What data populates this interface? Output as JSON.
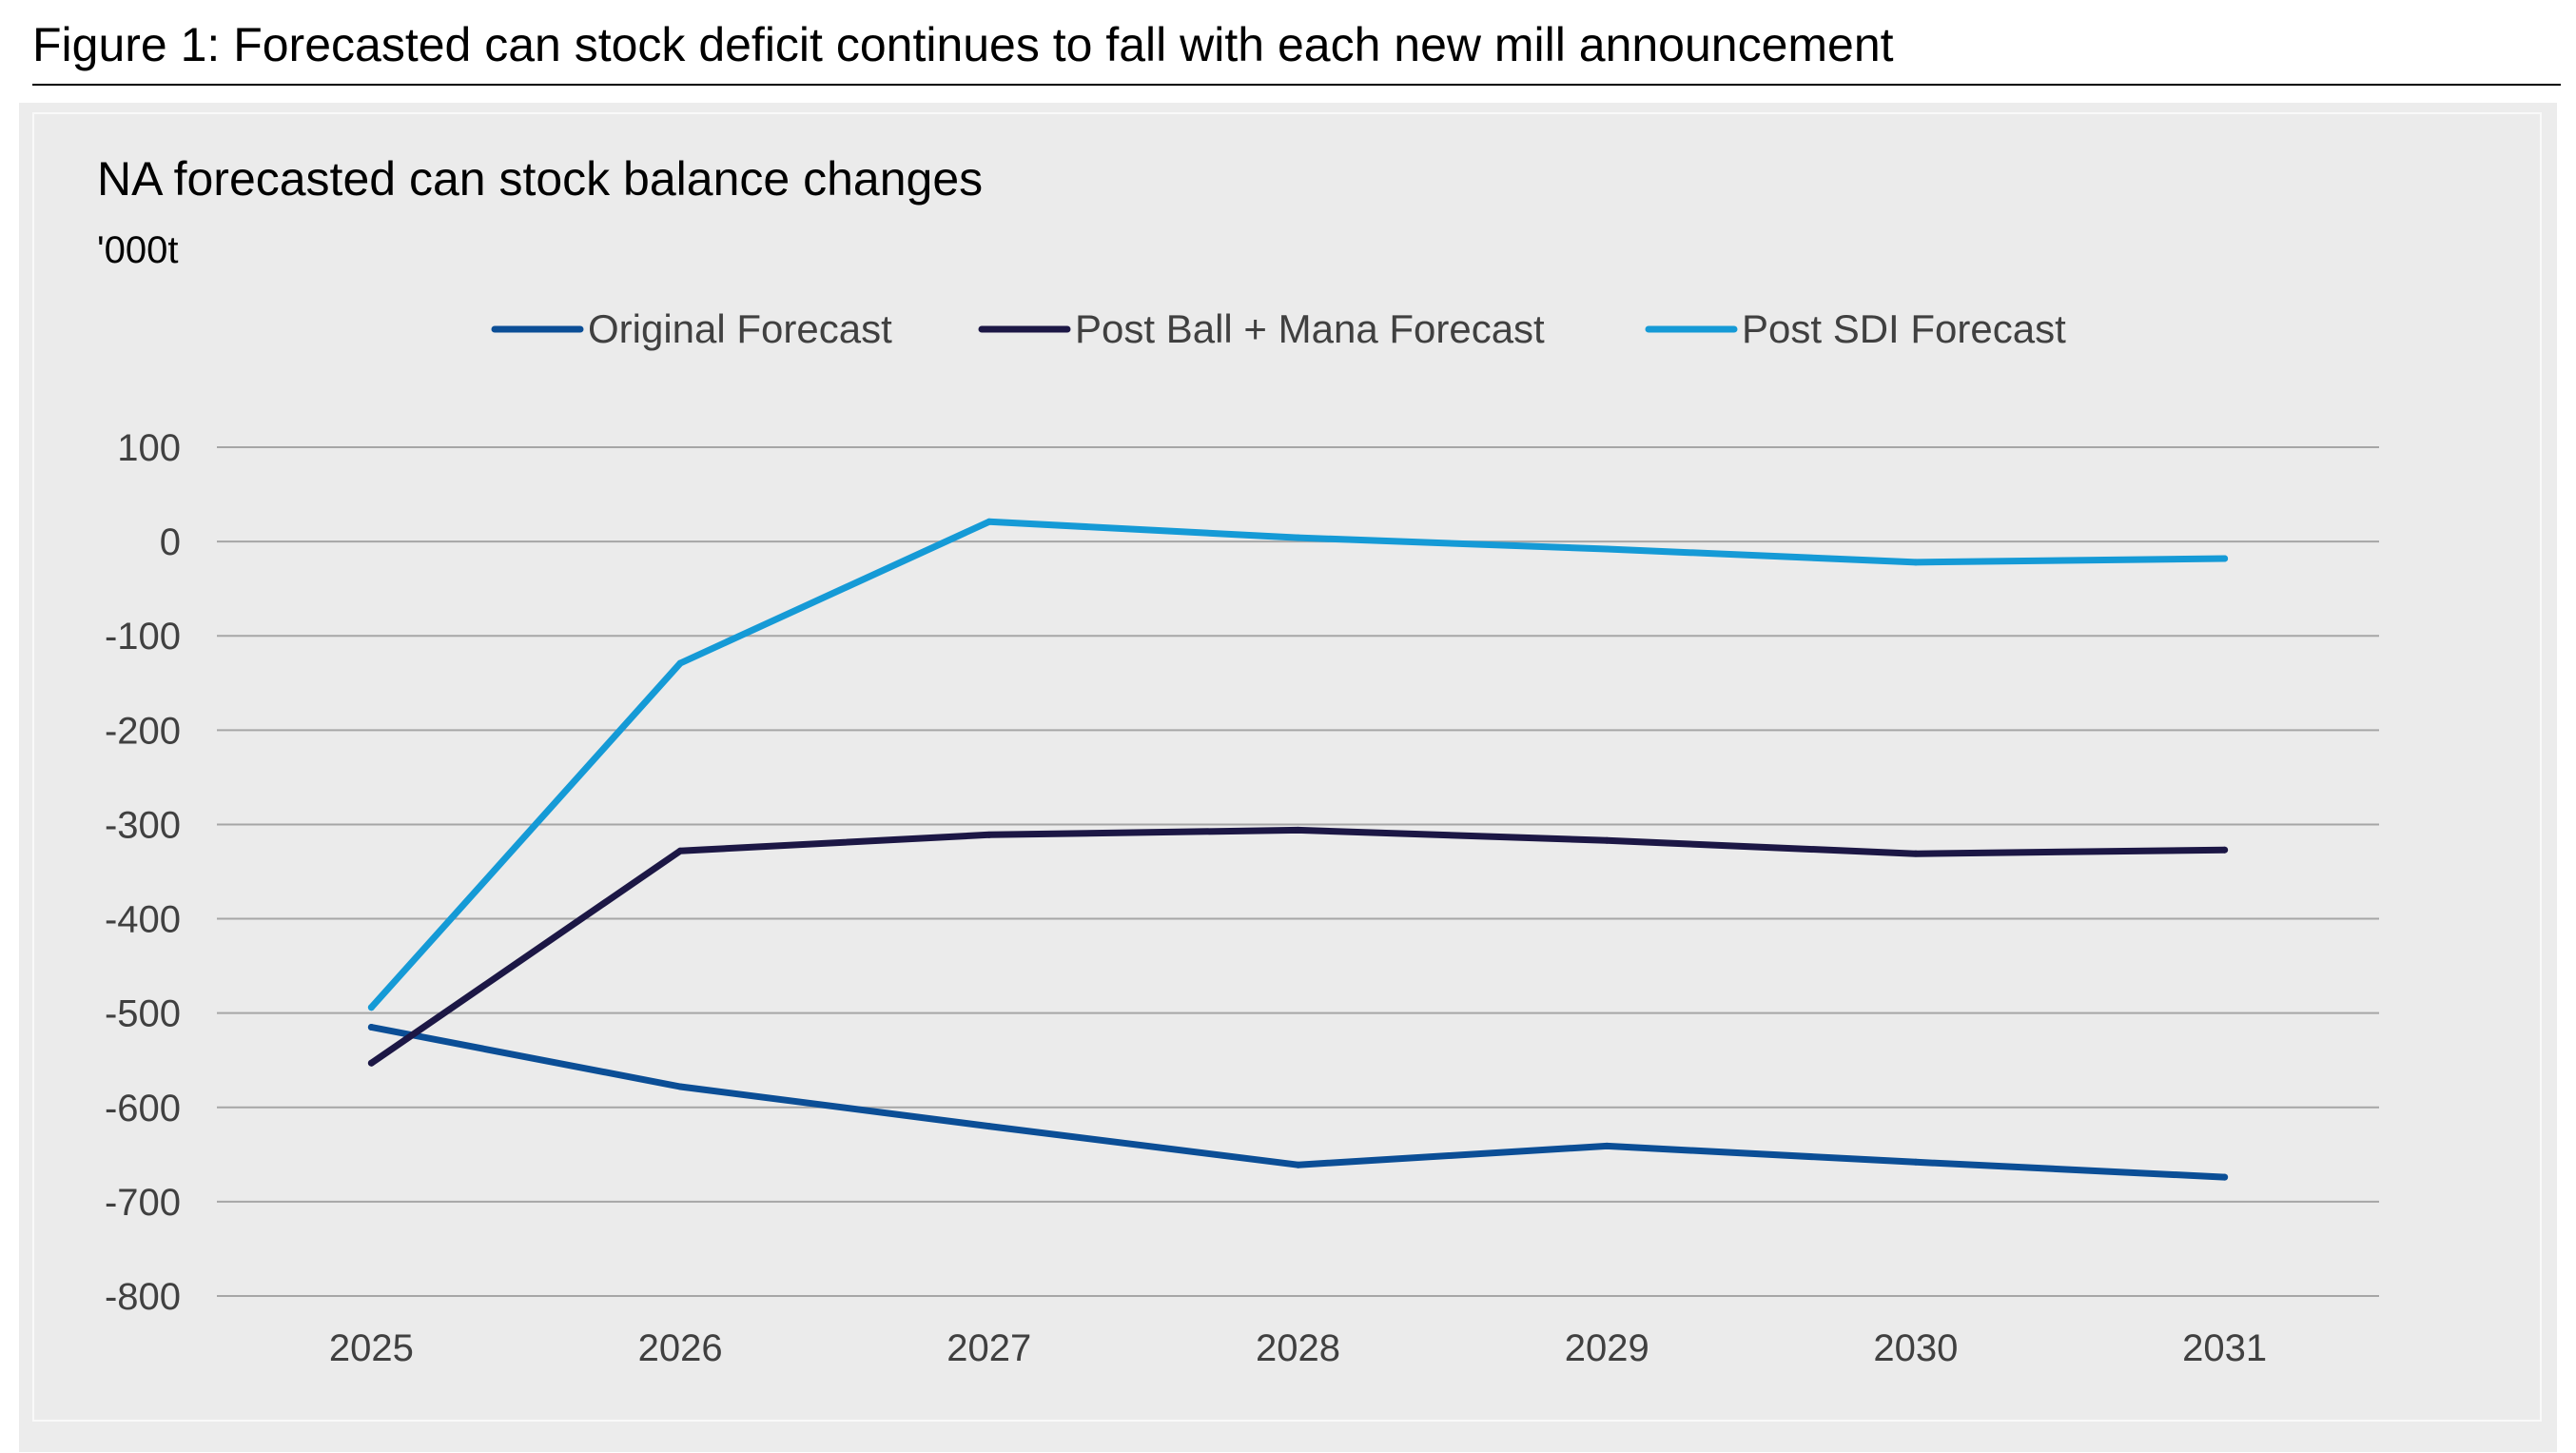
{
  "figure": {
    "caption": "Figure 1: Forecasted can stock deficit continues to fall with each new mill announcement"
  },
  "chart_data": {
    "type": "line",
    "title": "NA forecasted can stock balance changes",
    "unit_label": "'000t",
    "xlabel": "",
    "ylabel": "'000t",
    "categories": [
      "2025",
      "2026",
      "2027",
      "2028",
      "2029",
      "2030",
      "2031"
    ],
    "ylim": [
      -800,
      100
    ],
    "yticks": [
      100,
      0,
      -100,
      -200,
      -300,
      -400,
      -500,
      -600,
      -700,
      -800
    ],
    "ytick_labels": [
      "100",
      "0",
      "-100",
      "-200",
      "-300",
      "-400",
      "-500",
      "-600",
      "-700",
      "-800"
    ],
    "grid": "horizontal",
    "legend_position": "top-center",
    "series": [
      {
        "name": "Original Forecast",
        "color": "#0b4e96",
        "values": [
          -515,
          -578,
          -620,
          -661,
          -641,
          -658,
          -674
        ]
      },
      {
        "name": "Post Ball + Mana Forecast",
        "color": "#1c1745",
        "values": [
          -553,
          -328,
          -311,
          -306,
          -317,
          -331,
          -327
        ]
      },
      {
        "name": "Post SDI Forecast",
        "color": "#159ad6",
        "values": [
          -494,
          -129,
          21,
          4,
          -8,
          -22,
          -18
        ]
      }
    ]
  }
}
